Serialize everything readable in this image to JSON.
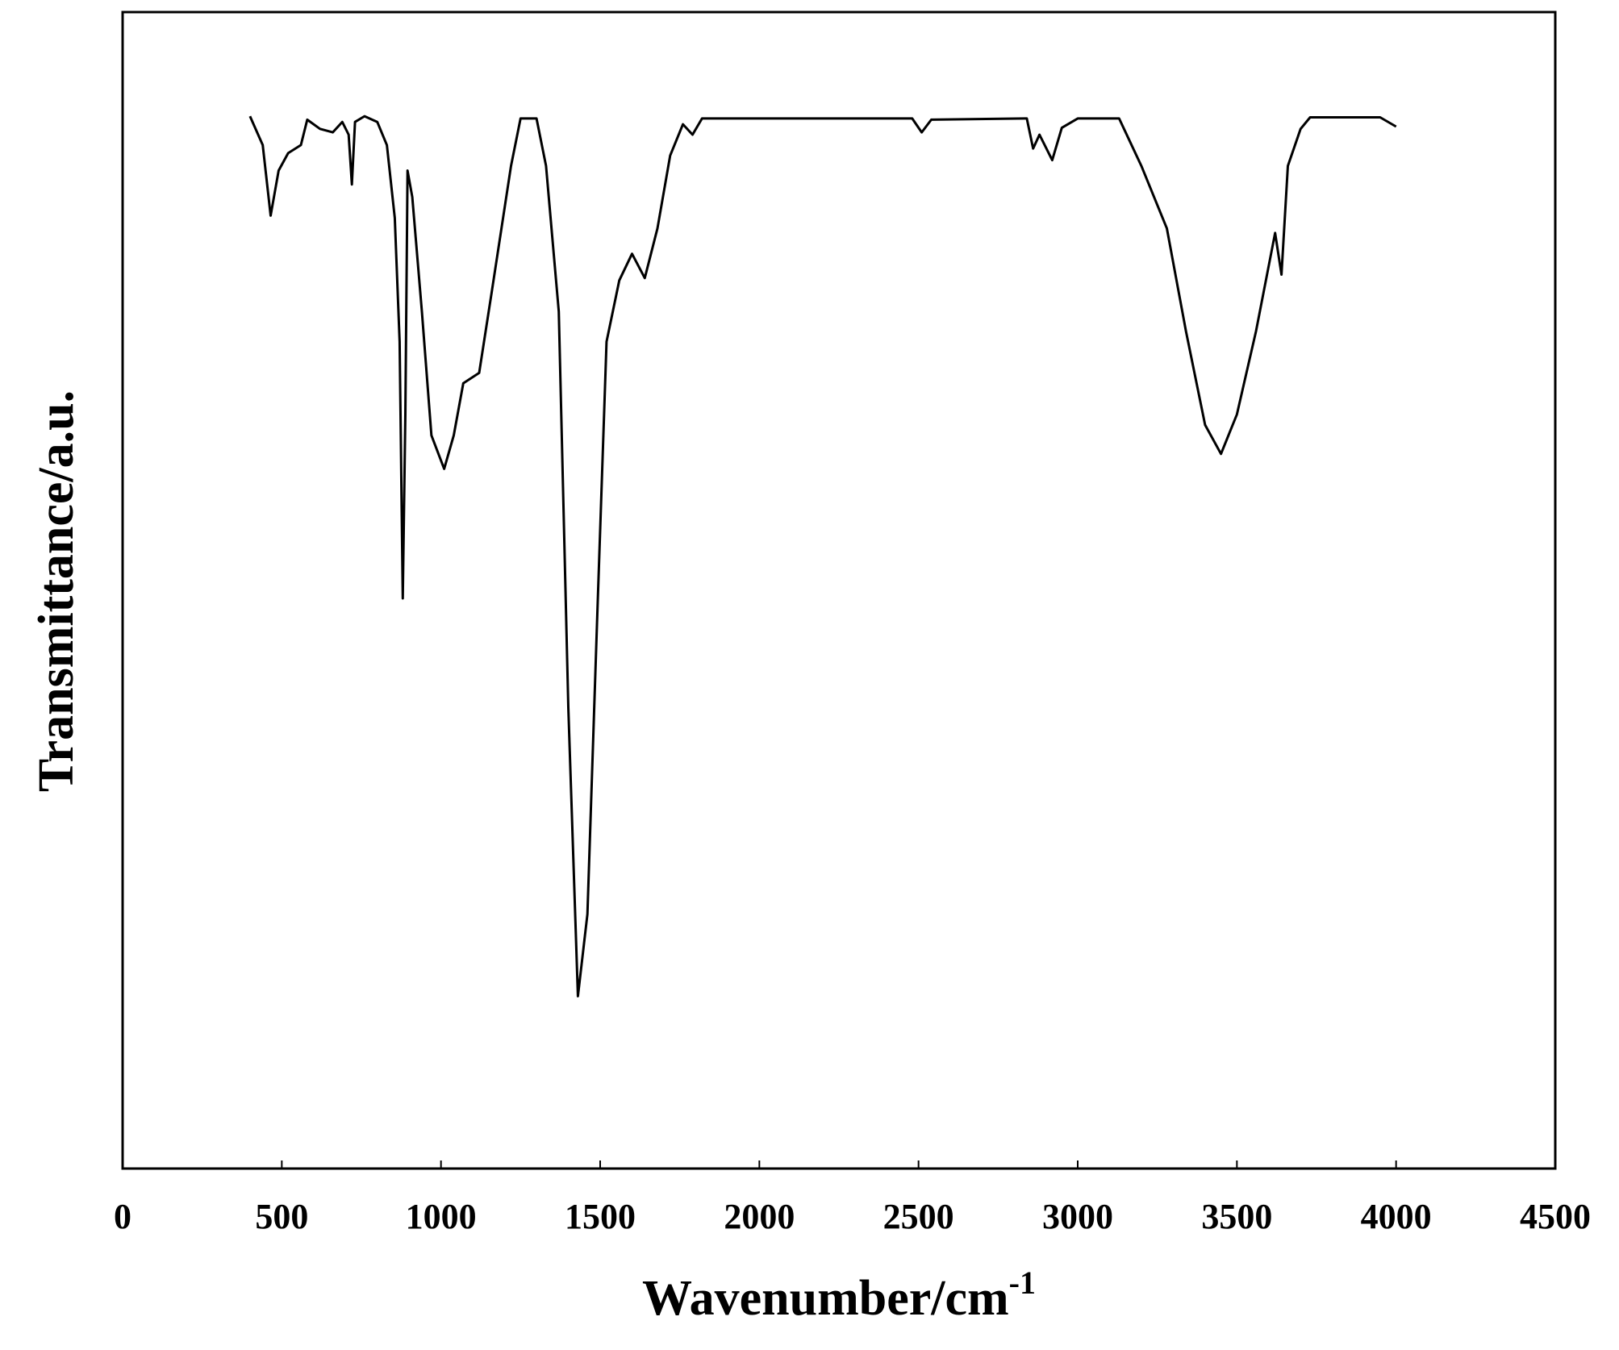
{
  "chart_data": {
    "type": "line",
    "xlabel": {
      "text": "Wavenumber/cm",
      "superscript": "-1"
    },
    "ylabel": "Transmittance/a.u.",
    "x": [
      400,
      440,
      465,
      490,
      520,
      560,
      580,
      620,
      660,
      690,
      710,
      720,
      730,
      760,
      800,
      830,
      855,
      870,
      880,
      888,
      895,
      910,
      940,
      970,
      1010,
      1040,
      1070,
      1120,
      1160,
      1220,
      1250,
      1300,
      1330,
      1370,
      1400,
      1430,
      1460,
      1490,
      1520,
      1560,
      1600,
      1640,
      1680,
      1720,
      1760,
      1790,
      1820,
      2480,
      2510,
      2540,
      2840,
      2860,
      2880,
      2920,
      2950,
      3000,
      3130,
      3200,
      3280,
      3340,
      3400,
      3450,
      3500,
      3560,
      3620,
      3640,
      3660,
      3700,
      3730,
      3950,
      4000
    ],
    "series": [
      {
        "color": "#000000",
        "values": [
          91,
          88.5,
          82.4,
          86.3,
          87.8,
          88.5,
          90.7,
          89.9,
          89.6,
          90.5,
          89.4,
          85.1,
          90.5,
          91,
          90.5,
          88.5,
          82.2,
          71.5,
          49.3,
          65.2,
          86.3,
          84,
          74.1,
          63.4,
          60.5,
          63.4,
          67.9,
          68.8,
          75.9,
          86.7,
          90.8,
          90.8,
          86.7,
          74.1,
          39.9,
          14.9,
          22,
          47.2,
          71.5,
          76.8,
          79.1,
          77,
          81.3,
          87.6,
          90.3,
          89.4,
          90.8,
          90.8,
          89.6,
          90.7,
          90.8,
          88.2,
          89.4,
          87.2,
          90,
          90.8,
          90.8,
          86.7,
          81.3,
          72.4,
          64.3,
          61.8,
          65.2,
          72.4,
          80.9,
          77.3,
          86.7,
          89.9,
          90.9,
          90.9,
          90.1
        ]
      }
    ],
    "xlim": [
      0,
      4500
    ],
    "xticks": [
      0,
      500,
      1000,
      1500,
      2000,
      2500,
      3000,
      3500,
      4000,
      4500
    ],
    "ylim": [
      0,
      100
    ]
  }
}
